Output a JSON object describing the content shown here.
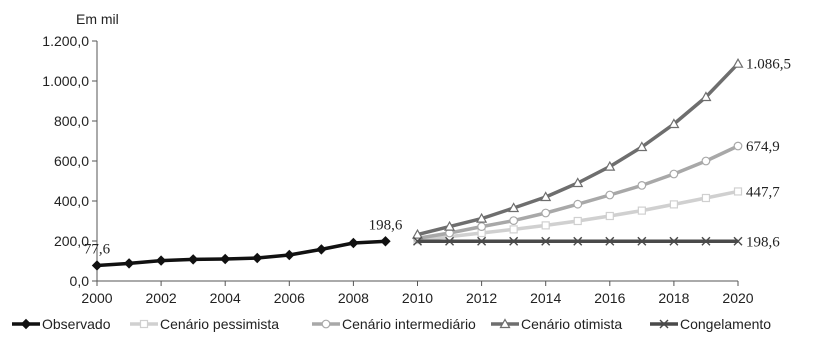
{
  "chart_data": {
    "type": "line",
    "unit_label": "Em mil",
    "xlim": [
      2000,
      2020
    ],
    "ylim": [
      0,
      1200
    ],
    "x_ticks": [
      "2000",
      "2002",
      "2004",
      "2006",
      "2008",
      "2010",
      "2012",
      "2014",
      "2016",
      "2018",
      "2020"
    ],
    "y_ticks": [
      "0,0",
      "200,0",
      "400,0",
      "600,0",
      "800,0",
      "1.000,0",
      "1.200,0"
    ],
    "legend_position": "bottom",
    "grid": false,
    "series": [
      {
        "name": "Observado",
        "color": "#111111",
        "marker": "diamond",
        "x": [
          2000,
          2001,
          2002,
          2003,
          2004,
          2005,
          2006,
          2007,
          2008,
          2009
        ],
        "y": [
          77.6,
          88,
          102,
          108,
          110,
          115,
          130,
          158,
          190,
          198.6
        ]
      },
      {
        "name": "Cenário pessimista",
        "color": "#d0d0d0",
        "marker": "square",
        "x": [
          2010,
          2011,
          2012,
          2013,
          2014,
          2015,
          2016,
          2017,
          2018,
          2019,
          2020
        ],
        "y": [
          205,
          222,
          240,
          258,
          278,
          300,
          325,
          352,
          383,
          415,
          447.7
        ]
      },
      {
        "name": "Cenário intermediário",
        "color": "#a8a8a8",
        "marker": "circle",
        "x": [
          2010,
          2011,
          2012,
          2013,
          2014,
          2015,
          2016,
          2017,
          2018,
          2019,
          2020
        ],
        "y": [
          213,
          240,
          272,
          302,
          340,
          384,
          430,
          478,
          535,
          600,
          674.9
        ]
      },
      {
        "name": "Cenário otimista",
        "color": "#6e6e6e",
        "marker": "triangle",
        "x": [
          2010,
          2011,
          2012,
          2013,
          2014,
          2015,
          2016,
          2017,
          2018,
          2019,
          2020
        ],
        "y": [
          232,
          272,
          312,
          365,
          420,
          490,
          572,
          670,
          785,
          920,
          1086.5
        ]
      },
      {
        "name": "Congelamento",
        "color": "#4a4a4a",
        "marker": "x",
        "x": [
          2010,
          2011,
          2012,
          2013,
          2014,
          2015,
          2016,
          2017,
          2018,
          2019,
          2020
        ],
        "y": [
          198.6,
          198.6,
          198.6,
          198.6,
          198.6,
          198.6,
          198.6,
          198.6,
          198.6,
          198.6,
          198.6
        ]
      }
    ],
    "annotations": [
      {
        "text": "77,6",
        "x": 2000,
        "y": 77.6,
        "anchor": "above"
      },
      {
        "text": "198,6",
        "x": 2009,
        "y": 198.6,
        "anchor": "above"
      },
      {
        "text": "1.086,5",
        "x": 2020,
        "y": 1086.5,
        "anchor": "right"
      },
      {
        "text": "674,9",
        "x": 2020,
        "y": 674.9,
        "anchor": "right"
      },
      {
        "text": "447,7",
        "x": 2020,
        "y": 447.7,
        "anchor": "right"
      },
      {
        "text": "198,6",
        "x": 2020,
        "y": 198.6,
        "anchor": "right"
      }
    ]
  }
}
